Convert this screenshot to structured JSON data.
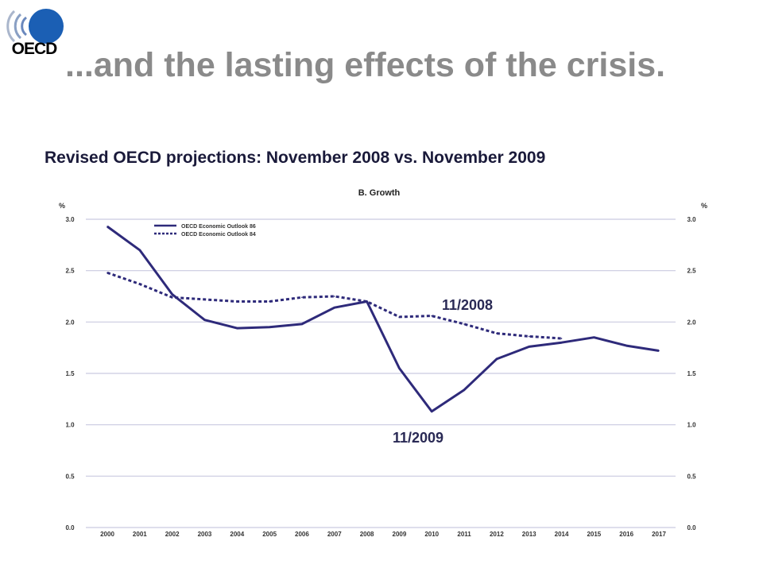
{
  "slide": {
    "title": "...and the lasting effects of the crisis.",
    "subtitle": "Revised OECD projections: November 2008 vs. November 2009",
    "logo_text": "OECD",
    "callouts": {
      "nov2008": "11/2008",
      "nov2009": "11/2009"
    }
  },
  "colors": {
    "title": "#8a8a8a",
    "line": "#2e2a7a",
    "logo_blue": "#1b5fb4",
    "grid": "#c9c9e0"
  },
  "chart_data": {
    "type": "line",
    "title": "B. Growth",
    "ylabel_left": "%",
    "ylabel_right": "%",
    "ylim": [
      0,
      3
    ],
    "yticks": [
      "0.0",
      "0.5",
      "1.0",
      "1.5",
      "2.0",
      "2.5",
      "3.0"
    ],
    "grid": true,
    "legend_position": "top-left",
    "categories": [
      "2000",
      "2001",
      "2002",
      "2003",
      "2004",
      "2005",
      "2006",
      "2007",
      "2008",
      "2009",
      "2010",
      "2011",
      "2012",
      "2013",
      "2014",
      "2015",
      "2016",
      "2017"
    ],
    "series": [
      {
        "name": "OECD Economic Outlook 86",
        "style": "solid",
        "values": [
          2.93,
          2.7,
          2.27,
          2.02,
          1.94,
          1.95,
          1.98,
          2.14,
          2.2,
          1.55,
          1.13,
          1.34,
          1.64,
          1.76,
          1.8,
          1.85,
          1.77,
          1.72
        ]
      },
      {
        "name": "OECD Economic Outlook 84",
        "style": "dotted",
        "values": [
          2.48,
          2.37,
          2.24,
          2.22,
          2.2,
          2.2,
          2.24,
          2.25,
          2.2,
          2.05,
          2.06,
          1.98,
          1.89,
          1.86,
          1.84,
          null,
          null,
          null
        ]
      }
    ]
  }
}
